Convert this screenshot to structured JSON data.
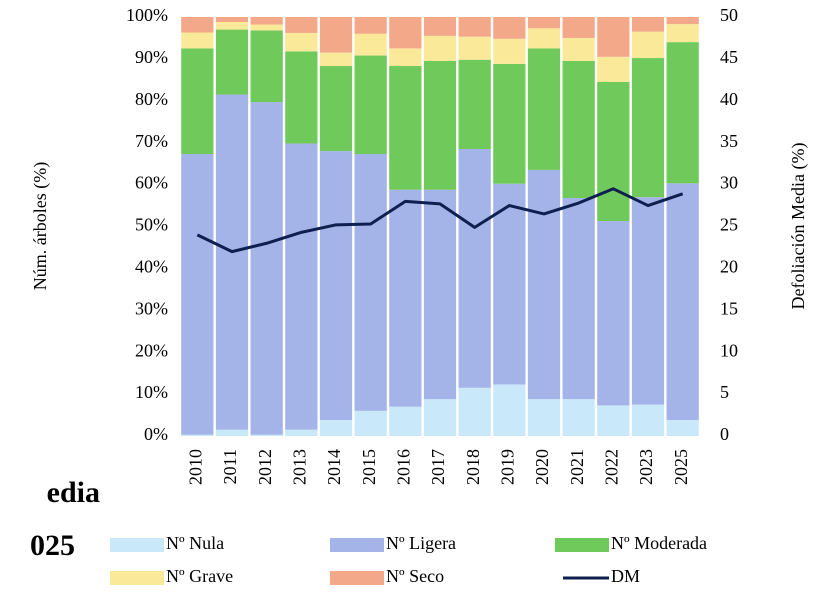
{
  "chart_data": {
    "type": "bar",
    "stacked": true,
    "annotations": [
      "edia",
      "025"
    ],
    "ylabel": "Núm. árboles (%)",
    "y2label": "Defoliación Media (%)",
    "categories": [
      "2010",
      "2011",
      "2012",
      "2013",
      "2014",
      "2015",
      "2016",
      "2017",
      "2018",
      "2019",
      "2020",
      "2021",
      "2022",
      "2023",
      "2025"
    ],
    "series": [
      {
        "name": "Nº Nula",
        "color": "#c9e9fa",
        "values": [
          0.3,
          1.5,
          0.3,
          1.5,
          3.8,
          6.0,
          7.0,
          8.8,
          11.5,
          12.3,
          8.8,
          8.8,
          7.3,
          7.5,
          3.8
        ]
      },
      {
        "name": "Nº Ligera",
        "color": "#a5b4e8",
        "values": [
          67.0,
          80.0,
          79.4,
          68.3,
          64.2,
          61.3,
          51.8,
          50.0,
          57.0,
          47.9,
          54.7,
          48.0,
          44.0,
          49.5,
          56.5
        ]
      },
      {
        "name": "Nº Moderada",
        "color": "#70c95b",
        "values": [
          25.2,
          15.5,
          17.1,
          22.0,
          20.3,
          23.5,
          29.5,
          30.7,
          21.3,
          28.6,
          29.0,
          32.7,
          33.2,
          33.2,
          33.7
        ]
      },
      {
        "name": "Nº Grave",
        "color": "#fbe99a",
        "values": [
          3.8,
          1.8,
          1.4,
          4.4,
          3.2,
          5.2,
          4.2,
          6.0,
          5.5,
          6.0,
          4.8,
          5.5,
          6.0,
          6.3,
          4.3
        ]
      },
      {
        "name": "Nº Seco",
        "color": "#f4a88a",
        "values": [
          3.7,
          1.2,
          1.8,
          3.8,
          8.5,
          4.0,
          7.5,
          4.5,
          4.7,
          5.2,
          2.7,
          5.0,
          9.5,
          3.5,
          1.7
        ]
      },
      {
        "name": "DM",
        "color": "#0f1f4f",
        "type": "line",
        "axis": "y2",
        "values": [
          24.0,
          22.0,
          23.0,
          24.3,
          25.2,
          25.3,
          28.0,
          27.7,
          24.9,
          27.5,
          26.5,
          27.8,
          29.5,
          27.5,
          28.9
        ]
      }
    ],
    "ylim": [
      0,
      100
    ],
    "yticks": [
      {
        "value": 0,
        "label": "0%"
      },
      {
        "value": 10,
        "label": "10%"
      },
      {
        "value": 20,
        "label": "20%"
      },
      {
        "value": 30,
        "label": "30%"
      },
      {
        "value": 40,
        "label": "40%"
      },
      {
        "value": 50,
        "label": "50%"
      },
      {
        "value": 60,
        "label": "60%"
      },
      {
        "value": 70,
        "label": "70%"
      },
      {
        "value": 80,
        "label": "80%"
      },
      {
        "value": 90,
        "label": "90%"
      },
      {
        "value": 100,
        "label": "100%"
      }
    ],
    "y2lim": [
      0,
      50
    ],
    "y2ticks": [
      0,
      5,
      10,
      15,
      20,
      25,
      30,
      35,
      40,
      45,
      50
    ]
  }
}
